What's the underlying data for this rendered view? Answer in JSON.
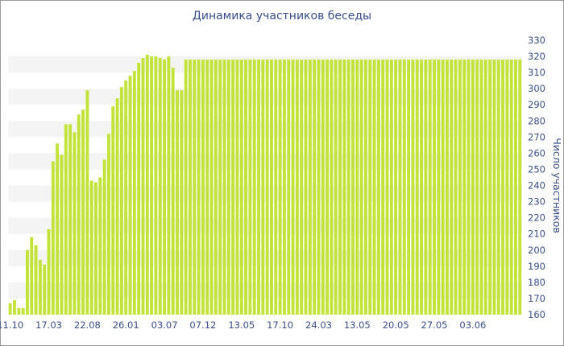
{
  "chart_data": {
    "type": "bar",
    "title": "Динамика участников беседы",
    "ylabel": "Число участников",
    "xlabel": "",
    "ylim": [
      160,
      330
    ],
    "y_ticks": [
      160,
      170,
      180,
      190,
      200,
      210,
      220,
      230,
      240,
      250,
      260,
      270,
      280,
      290,
      300,
      310,
      320,
      330
    ],
    "x_tick_labels": [
      {
        "index": 0,
        "label": "11.10"
      },
      {
        "index": 9,
        "label": "17.03"
      },
      {
        "index": 18,
        "label": "22.08"
      },
      {
        "index": 27,
        "label": "26.01"
      },
      {
        "index": 36,
        "label": "03.07"
      },
      {
        "index": 45,
        "label": "07.12"
      },
      {
        "index": 54,
        "label": "13.05"
      },
      {
        "index": 63,
        "label": "17.10"
      },
      {
        "index": 72,
        "label": "24.03"
      },
      {
        "index": 81,
        "label": "13.05"
      },
      {
        "index": 90,
        "label": "20.05"
      },
      {
        "index": 99,
        "label": "27.05"
      },
      {
        "index": 108,
        "label": "03.06"
      }
    ],
    "bar_color": "#c2e43a",
    "grid": "horizontal-bands",
    "values": [
      167,
      169,
      164,
      164,
      200,
      208,
      203,
      194,
      191,
      213,
      255,
      266,
      259,
      278,
      278,
      273,
      284,
      287,
      299,
      243,
      242,
      245,
      256,
      272,
      289,
      294,
      301,
      305,
      308,
      311,
      316,
      319,
      321,
      320,
      320,
      319,
      318,
      320,
      313,
      299,
      299,
      318,
      318,
      318,
      318,
      318,
      318,
      318,
      318,
      318,
      318,
      318,
      318,
      318,
      318,
      318,
      318,
      318,
      318,
      318,
      318,
      318,
      318,
      318,
      318,
      318,
      318,
      318,
      318,
      318,
      318,
      318,
      318,
      318,
      318,
      318,
      318,
      318,
      318,
      318,
      318,
      318,
      318,
      318,
      318,
      318,
      318,
      318,
      318,
      318,
      318,
      318,
      318,
      318,
      318,
      318,
      318,
      318,
      318,
      318,
      318,
      318,
      318,
      318,
      318,
      318,
      318,
      318,
      318,
      318,
      318,
      318,
      318,
      318,
      318,
      318,
      318,
      318,
      318,
      318
    ]
  }
}
